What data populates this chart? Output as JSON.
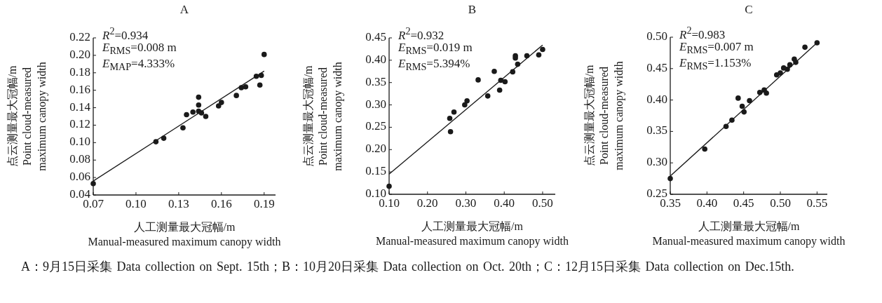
{
  "chart_data": [
    {
      "type": "scatter",
      "title": "A",
      "xlabel": "人工测量最大冠幅/m Manual-measured maximum canopy width",
      "ylabel": "点云测量最大冠幅/m Point cloud-measured maximum canopy width",
      "xlim": [
        0.07,
        0.198
      ],
      "ylim": [
        0.04,
        0.22
      ],
      "xticks": [
        0.07,
        {
          "value": 0.1,
          "label": "0.10"
        },
        0.13,
        0.16,
        0.19
      ],
      "yticks": [
        0.04,
        0.06,
        0.08,
        {
          "value": 0.1,
          "label": "0.10"
        },
        0.12,
        0.14,
        0.16,
        0.18,
        {
          "value": 0.2,
          "label": "0.20"
        },
        0.22
      ],
      "annotations": [
        "*R*$^{2}$=0.934",
        "*E*$_{RMS}$=0.008 m",
        "*E*$_{MAP}$=4.333%"
      ],
      "series": [
        {
          "type": "scatter",
          "marker": "circle",
          "color": "#1a1a1a",
          "x": [
            0.07,
            0.114,
            0.1195,
            0.133,
            0.1355,
            0.14,
            0.144,
            0.144,
            0.144,
            0.146,
            0.149,
            0.158,
            0.16,
            0.1705,
            0.174,
            0.177,
            0.1845,
            0.188,
            0.187,
            0.19
          ],
          "values": [
            0.053,
            0.101,
            0.105,
            0.117,
            0.132,
            0.135,
            0.152,
            0.143,
            0.136,
            0.134,
            0.13,
            0.142,
            0.146,
            0.154,
            0.163,
            0.164,
            0.176,
            0.177,
            0.166,
            0.201
          ]
        },
        {
          "type": "line",
          "marker": "none",
          "color": "#1a1a1a",
          "x": [
            0.07,
            0.19
          ],
          "values": [
            0.056,
            0.182
          ]
        }
      ]
    },
    {
      "type": "scatter",
      "title": "B",
      "xlabel": "人工测量最大冠幅/m Manual-measured maximum canopy width",
      "ylabel": "点云测量最大冠幅/m Point cloud-measured maximum canopy width",
      "xlim": [
        0.1,
        0.533
      ],
      "ylim": [
        0.1,
        0.45
      ],
      "xticks": [
        {
          "value": 0.1,
          "label": "0.10"
        },
        {
          "value": 0.2,
          "label": "0.20"
        },
        {
          "value": 0.3,
          "label": "0.30"
        },
        {
          "value": 0.4,
          "label": "0.40"
        },
        {
          "value": 0.5,
          "label": "0.50"
        }
      ],
      "yticks": [
        {
          "value": 0.1,
          "label": "0.10"
        },
        0.15,
        {
          "value": 0.2,
          "label": "0.20"
        },
        0.25,
        {
          "value": 0.3,
          "label": "0.30"
        },
        0.35,
        {
          "value": 0.4,
          "label": "0.40"
        },
        0.45
      ],
      "annotations": [
        "*R*$^{2}$=0.932",
        "*E*$_{RMS}$=0.019 m",
        "*E*$_{RMS}$=5.394%"
      ],
      "series": [
        {
          "type": "scatter",
          "marker": "circle",
          "color": "#1a1a1a",
          "x": [
            0.1,
            0.258,
            0.26,
            0.269,
            0.297,
            0.303,
            0.332,
            0.357,
            0.374,
            0.388,
            0.391,
            0.402,
            0.422,
            0.429,
            0.429,
            0.435,
            0.459,
            0.49,
            0.5
          ],
          "values": [
            0.118,
            0.27,
            0.24,
            0.284,
            0.3,
            0.309,
            0.356,
            0.32,
            0.375,
            0.333,
            0.355,
            0.352,
            0.374,
            0.41,
            0.405,
            0.391,
            0.41,
            0.412,
            0.424
          ]
        },
        {
          "type": "line",
          "marker": "none",
          "color": "#1a1a1a",
          "x": [
            0.1,
            0.5
          ],
          "values": [
            0.145,
            0.434
          ]
        }
      ]
    },
    {
      "type": "scatter",
      "title": "C",
      "xlabel": "人工测量最大冠幅/m Manual-measured maximum canopy width",
      "ylabel": "点云测量最大冠幅/m Point cloud-measured maximum canopy width",
      "xlim": [
        0.35,
        0.564
      ],
      "ylim": [
        0.25,
        0.5
      ],
      "xticks": [
        0.35,
        {
          "value": 0.4,
          "label": "0.40"
        },
        0.45,
        {
          "value": 0.5,
          "label": "0.50"
        },
        0.55
      ],
      "yticks": [
        0.25,
        {
          "value": 0.3,
          "label": "0.30"
        },
        0.35,
        {
          "value": 0.4,
          "label": "0.40"
        },
        0.45,
        {
          "value": 0.5,
          "label": "0.50"
        }
      ],
      "annotations": [
        "*R*$^{2}$=0.983",
        "*E*$_{RMS}$=0.007 m",
        "*E*$_{RMS}$=1.153%"
      ],
      "series": [
        {
          "type": "scatter",
          "marker": "circle",
          "color": "#1a1a1a",
          "x": [
            0.35,
            0.397,
            0.426,
            0.434,
            0.4425,
            0.448,
            0.4505,
            0.458,
            0.472,
            0.478,
            0.481,
            0.495,
            0.5,
            0.5045,
            0.5095,
            0.513,
            0.519,
            0.521,
            0.5335,
            0.55
          ],
          "values": [
            0.275,
            0.322,
            0.358,
            0.368,
            0.403,
            0.39,
            0.381,
            0.399,
            0.412,
            0.416,
            0.411,
            0.44,
            0.443,
            0.451,
            0.449,
            0.456,
            0.465,
            0.46,
            0.484,
            0.491
          ]
        },
        {
          "type": "line",
          "marker": "none",
          "color": "#1a1a1a",
          "x": [
            0.35,
            0.55
          ],
          "values": [
            0.279,
            0.491
          ]
        }
      ]
    },
    {
      "type": "other",
      "annotations": [
        "A：9月15日采集 Data collection on Sept. 15th；B：10月20日采集 Data collection on Oct. 20th；C：12月15日采集 Data collection on Dec.15th."
      ]
    }
  ]
}
